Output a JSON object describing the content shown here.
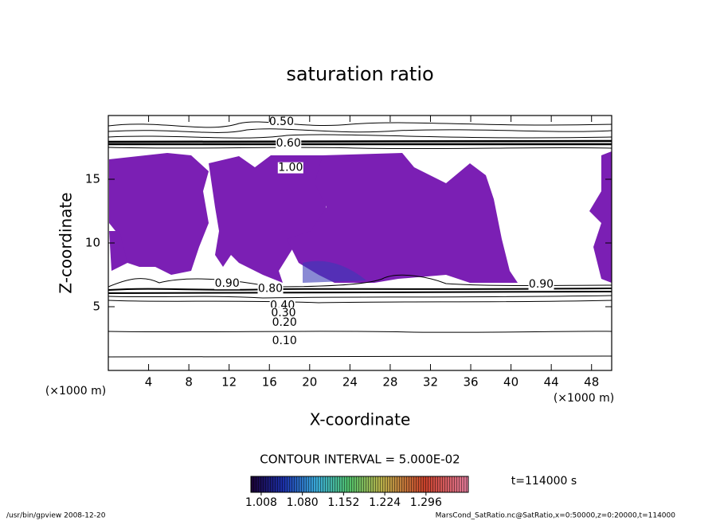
{
  "chart_data": {
    "type": "contour",
    "title": "saturation ratio",
    "x_label": "X-coordinate",
    "y_label": "Z-coordinate",
    "x_unit": "(×1000 m)",
    "xlim": [
      0,
      50
    ],
    "ylim": [
      0,
      20
    ],
    "xticks": [
      4,
      8,
      12,
      16,
      20,
      24,
      28,
      32,
      36,
      40,
      44,
      48
    ],
    "yticks": [
      5,
      10,
      15
    ],
    "fill_color": "#7b1fb4",
    "contour_labels": [
      {
        "value": 0.5,
        "label": "0.50",
        "x": 17.2,
        "z": 19.5
      },
      {
        "value": 0.6,
        "label": "0.60",
        "x": 17.9,
        "z": 17.8
      },
      {
        "value": 1.0,
        "label": "1.00",
        "x": 18.1,
        "z": 15.9
      },
      {
        "value": 0.9,
        "label": "0.90",
        "x": 11.8,
        "z": 6.8
      },
      {
        "value": 0.9,
        "label": "0.90",
        "x": 43.0,
        "z": 6.75
      },
      {
        "value": 0.8,
        "label": "0.80",
        "x": 16.1,
        "z": 6.4
      },
      {
        "value": 0.4,
        "label": "0.40",
        "x": 17.3,
        "z": 5.1
      },
      {
        "value": 0.3,
        "label": "0.30",
        "x": 17.4,
        "z": 4.5
      },
      {
        "value": 0.2,
        "label": "0.20",
        "x": 17.5,
        "z": 3.75
      },
      {
        "value": 0.1,
        "label": "0.10",
        "x": 17.5,
        "z": 2.3
      }
    ],
    "contour_interval_label": "CONTOUR INTERVAL = 5.000E-02",
    "colorbar_lim": [
      0.99,
      1.37
    ],
    "colorbar_ticks": [
      {
        "value": 1.008,
        "label": "1.008"
      },
      {
        "value": 1.08,
        "label": "1.080"
      },
      {
        "value": 1.152,
        "label": "1.152"
      },
      {
        "value": 1.224,
        "label": "1.224"
      },
      {
        "value": 1.296,
        "label": "1.296"
      }
    ],
    "time_label": "t=114000 s",
    "footer_left": "/usr/bin/gpview  2008-12-20",
    "footer_right": "MarsCond_SatRatio.nc@SatRatio,x=0:50000,z=0:20000,t=114000"
  }
}
